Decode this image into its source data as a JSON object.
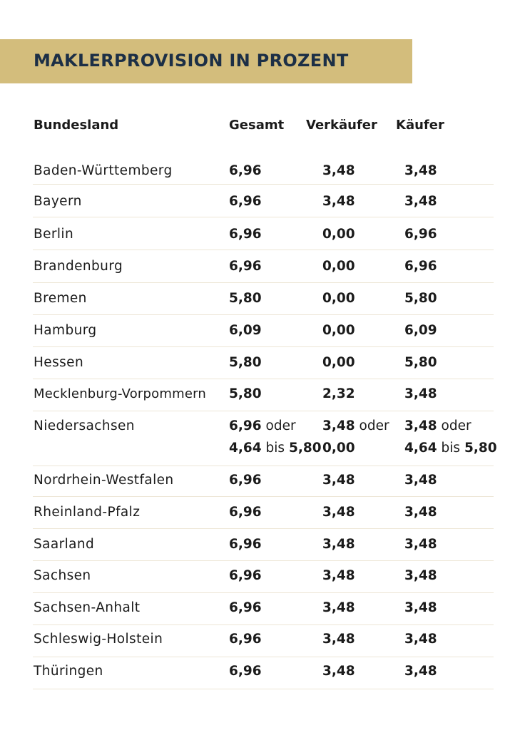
{
  "title": "MAKLERPROVISION IN PROZENT",
  "columns": [
    "Bundesland",
    "Gesamt",
    "Verkäufer",
    "Käufer"
  ],
  "rows": [
    {
      "state": "Baden-Württemberg",
      "total": "6,96",
      "seller": "3,48",
      "buyer": "3,48"
    },
    {
      "state": "Bayern",
      "total": "6,96",
      "seller": "3,48",
      "buyer": "3,48"
    },
    {
      "state": "Berlin",
      "total": "6,96",
      "seller": "0,00",
      "buyer": "6,96"
    },
    {
      "state": "Brandenburg",
      "total": "6,96",
      "seller": "0,00",
      "buyer": "6,96"
    },
    {
      "state": "Bremen",
      "total": "5,80",
      "seller": "0,00",
      "buyer": "5,80"
    },
    {
      "state": "Hamburg",
      "total": "6,09",
      "seller": "0,00",
      "buyer": "6,09"
    },
    {
      "state": "Hessen",
      "total": "5,80",
      "seller": "0,00",
      "buyer": "5,80"
    },
    {
      "state": "Mecklenburg-Vorpommern",
      "total": "5,80",
      "seller": "2,32",
      "buyer": "3,48"
    },
    {
      "state": "Niedersachsen",
      "total_a": "6,96",
      "total_or": "oder",
      "total_b": "4,64",
      "total_bis": "bis",
      "total_c": "5,80",
      "seller_a": "3,48",
      "seller_or": "oder",
      "seller_b": "0,00",
      "buyer_a": "3,48",
      "buyer_or": "oder",
      "buyer_b": "4,64",
      "buyer_bis": "bis",
      "buyer_c": "5,80"
    },
    {
      "state": "Nordrhein-Westfalen",
      "total": "6,96",
      "seller": "3,48",
      "buyer": "3,48"
    },
    {
      "state": "Rheinland-Pfalz",
      "total": "6,96",
      "seller": "3,48",
      "buyer": "3,48"
    },
    {
      "state": "Saarland",
      "total": "6,96",
      "seller": "3,48",
      "buyer": "3,48"
    },
    {
      "state": "Sachsen",
      "total": "6,96",
      "seller": "3,48",
      "buyer": "3,48"
    },
    {
      "state": "Sachsen-Anhalt",
      "total": "6,96",
      "seller": "3,48",
      "buyer": "3,48"
    },
    {
      "state": "Schleswig-Holstein",
      "total": "6,96",
      "seller": "3,48",
      "buyer": "3,48"
    },
    {
      "state": "Thüringen",
      "total": "6,96",
      "seller": "3,48",
      "buyer": "3,48"
    }
  ]
}
